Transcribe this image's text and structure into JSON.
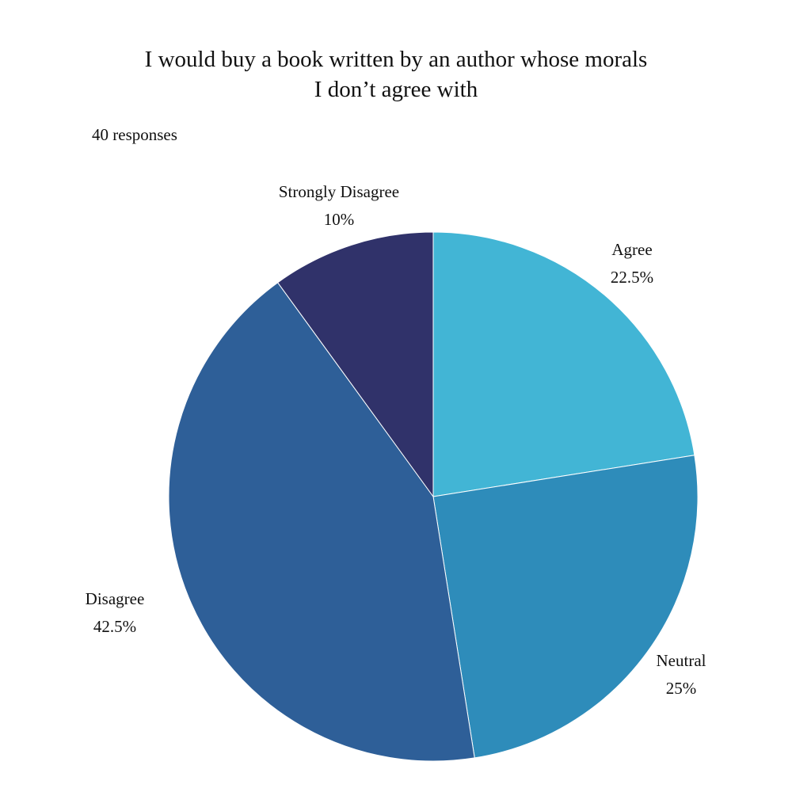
{
  "chart_data": {
    "type": "pie",
    "title_lines": [
      "I would buy a book written by an author whose morals",
      "I don’t agree with"
    ],
    "subtitle": "40 responses",
    "slices": [
      {
        "label": "Agree",
        "value": 22.5,
        "display": "22.5%",
        "color": "#42B5D5"
      },
      {
        "label": "Neutral",
        "value": 25,
        "display": "25%",
        "color": "#2E8CBA"
      },
      {
        "label": "Disagree",
        "value": 42.5,
        "display": "42.5%",
        "color": "#2E5F98"
      },
      {
        "label": "Strongly Disagree",
        "value": 10,
        "display": "10%",
        "color": "#30326A"
      }
    ]
  }
}
